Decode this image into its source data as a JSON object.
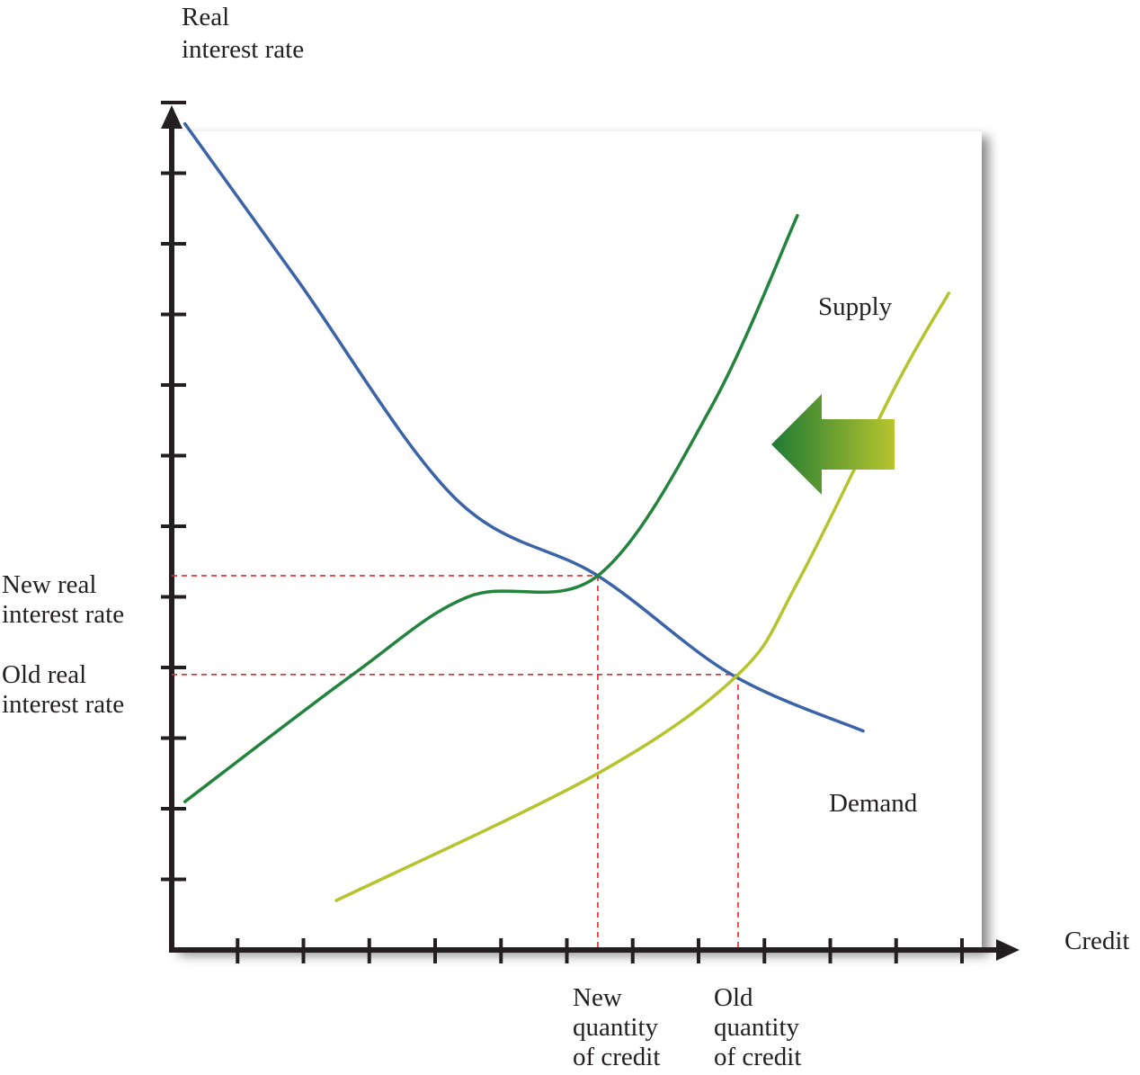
{
  "chart_data": {
    "type": "line",
    "title": "",
    "ylabel": [
      "Real",
      "interest rate"
    ],
    "xlabel": "Credit",
    "xlim": [
      0,
      12
    ],
    "ylim": [
      0,
      12
    ],
    "x_ticks": [
      1,
      2,
      3,
      4,
      5,
      6,
      7,
      8,
      9,
      10,
      11,
      12
    ],
    "y_ticks": [
      1,
      2,
      3,
      4,
      5,
      6,
      7,
      8,
      9,
      10,
      11,
      12
    ],
    "grid": false,
    "series": [
      {
        "name": "Demand",
        "color": "#3a63a8",
        "points": [
          [
            0.2,
            11.7
          ],
          [
            1.9,
            9.5
          ],
          [
            4.3,
            6.4
          ],
          [
            6.47,
            5.3
          ],
          [
            8.5,
            3.9
          ],
          [
            10.5,
            3.1
          ]
        ]
      },
      {
        "name": "Supply",
        "color": "#22843c",
        "points": [
          [
            0.2,
            2.1
          ],
          [
            2.75,
            3.9
          ],
          [
            4.5,
            5.0
          ],
          [
            6.47,
            5.3
          ],
          [
            8.2,
            7.7
          ],
          [
            9.5,
            10.4
          ]
        ]
      },
      {
        "name": "",
        "color": "#b5c42d",
        "points": [
          [
            2.5,
            0.7
          ],
          [
            6.47,
            2.5
          ],
          [
            8.6,
            3.9
          ],
          [
            9.5,
            5.2
          ],
          [
            11.0,
            8.0
          ],
          [
            11.8,
            9.3
          ]
        ]
      }
    ],
    "reference_lines": [
      {
        "label": [
          "New real",
          "interest rate"
        ],
        "y": 5.3,
        "x": 6.47
      },
      {
        "label": [
          "Old real",
          "interest rate"
        ],
        "y": 3.9,
        "x": 8.6
      }
    ],
    "x_markers": [
      {
        "label": [
          "New",
          "quantity",
          "of credit"
        ],
        "x": 6.47
      },
      {
        "label": [
          "Old",
          "quantity",
          "of credit"
        ],
        "x": 8.6
      }
    ],
    "annotations": [
      {
        "type": "arrow",
        "direction": "left",
        "meaning": "supply shifts left"
      }
    ]
  },
  "colors": {
    "axis": "#231f20",
    "reference": "#e8262c",
    "arrow_start": "#1e7a34",
    "arrow_end": "#b8c52d"
  }
}
